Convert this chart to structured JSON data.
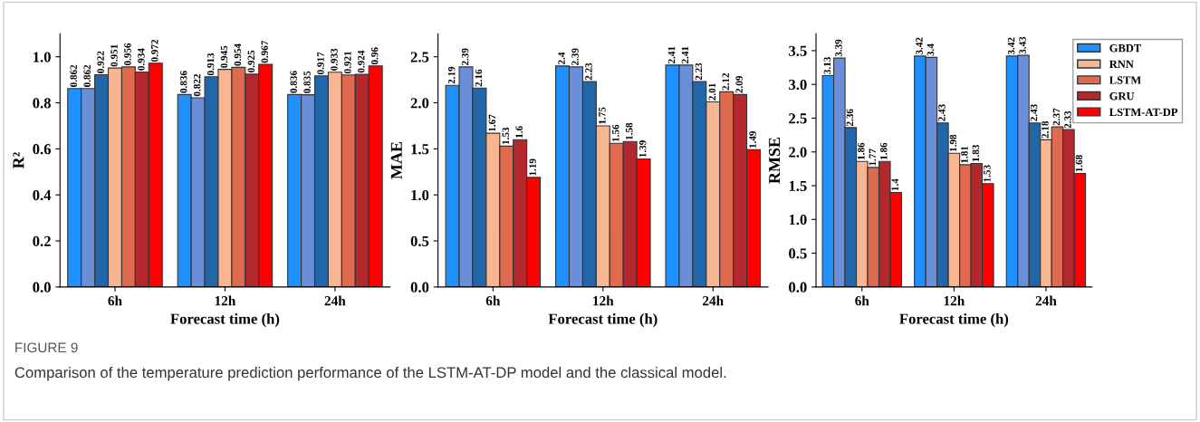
{
  "chart_data": [
    {
      "type": "bar",
      "ylabel": "R²",
      "xlabel": "Forecast time (h)",
      "categories": [
        "6h",
        "12h",
        "24h"
      ],
      "ylim": [
        0,
        1.1
      ],
      "yticks": [
        {
          "value": 0,
          "label": "0.0"
        },
        0.2,
        0.4,
        0.6,
        0.8,
        {
          "value": 1,
          "label": "1.0"
        }
      ],
      "data_labels": true,
      "legend": false,
      "grid": false,
      "series": [
        {
          "color": "#1e90ff",
          "values": [
            0.862,
            0.836,
            0.836
          ]
        },
        {
          "color": "#6a8fd8",
          "values": [
            0.862,
            0.822,
            0.835
          ]
        },
        {
          "color": "#2166a8",
          "values": [
            0.922,
            0.913,
            0.917
          ]
        },
        {
          "color": "#f8b592",
          "values": [
            0.951,
            0.945,
            0.933
          ]
        },
        {
          "color": "#e06a50",
          "values": [
            0.956,
            0.954,
            0.921
          ]
        },
        {
          "color": "#b3282d",
          "values": [
            0.934,
            0.925,
            0.924
          ]
        },
        {
          "color": "#fe0000",
          "values": [
            0.972,
            0.967,
            0.96
          ]
        }
      ]
    },
    {
      "type": "bar",
      "ylabel": "MAE",
      "xlabel": "Forecast time (h)",
      "categories": [
        "6h",
        "12h",
        "24h"
      ],
      "ylim": [
        0,
        2.75
      ],
      "yticks": [
        {
          "value": 0,
          "label": "0.0"
        },
        0.5,
        {
          "value": 1,
          "label": "1.0"
        },
        1.5,
        {
          "value": 2,
          "label": "2.0"
        },
        2.5
      ],
      "data_labels": true,
      "legend": false,
      "grid": false,
      "series": [
        {
          "color": "#1e90ff",
          "values": [
            2.19,
            2.4,
            2.41
          ]
        },
        {
          "color": "#6a8fd8",
          "values": [
            2.39,
            2.39,
            2.41
          ]
        },
        {
          "color": "#2166a8",
          "values": [
            2.16,
            2.23,
            2.23
          ]
        },
        {
          "color": "#f8b592",
          "values": [
            1.67,
            1.75,
            2.01
          ]
        },
        {
          "color": "#e06a50",
          "values": [
            1.53,
            1.56,
            2.12
          ]
        },
        {
          "color": "#b3282d",
          "values": [
            1.6,
            1.58,
            2.09
          ]
        },
        {
          "color": "#fe0000",
          "values": [
            1.19,
            1.39,
            1.49
          ]
        }
      ]
    },
    {
      "type": "bar",
      "ylabel": "RMSE",
      "xlabel": "Forecast time (h)",
      "categories": [
        "6h",
        "12h",
        "24h"
      ],
      "ylim": [
        0,
        3.75
      ],
      "yticks": [
        {
          "value": 0,
          "label": "0.0"
        },
        0.5,
        {
          "value": 1,
          "label": "1.0"
        },
        1.5,
        {
          "value": 2,
          "label": "2.0"
        },
        2.5,
        {
          "value": 3,
          "label": "3.0"
        },
        3.5
      ],
      "data_labels": true,
      "legend": "top right",
      "grid": false,
      "annotations": [
        "FIGURE 9",
        "Comparison of the temperature prediction performance of the LSTM-AT-DP model and the classical model."
      ],
      "series": [
        {
          "name": "GBDT",
          "color": "#1e90ff",
          "values": [
            3.13,
            3.42,
            3.42
          ]
        },
        {
          "color": "#6a8fd8",
          "values": [
            3.39,
            3.4,
            3.43
          ]
        },
        {
          "color": "#2166a8",
          "values": [
            2.36,
            2.43,
            2.43
          ]
        },
        {
          "name": "RNN",
          "color": "#f8b592",
          "values": [
            1.86,
            1.98,
            2.18
          ]
        },
        {
          "name": "LSTM",
          "color": "#e06a50",
          "values": [
            1.77,
            1.81,
            2.37
          ]
        },
        {
          "name": "GRU",
          "color": "#b3282d",
          "values": [
            1.86,
            1.83,
            2.33
          ]
        },
        {
          "name": "LSTM-AT-DP",
          "color": "#fe0000",
          "values": [
            1.4,
            1.53,
            1.68
          ]
        }
      ]
    }
  ]
}
